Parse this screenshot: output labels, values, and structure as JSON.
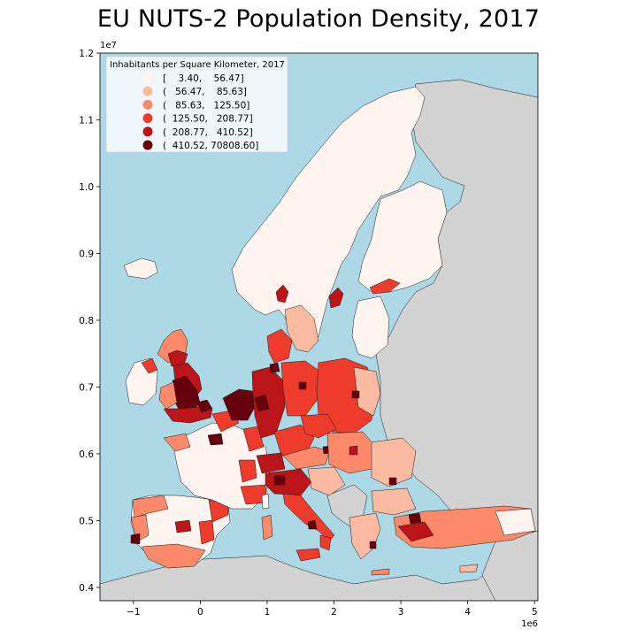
{
  "title": "EU NUTS-2 Population Density, 2017",
  "colors": {
    "sea": "#add8e6",
    "non_eu_land": "#d3d3d3",
    "border": "#1a1a1a",
    "classes": [
      "#fff5f0",
      "#fcbba1",
      "#fc8a6a",
      "#ef3b2c",
      "#bb1419",
      "#67000d"
    ]
  },
  "axes": {
    "x_exponent": "1e6",
    "y_exponent": "1e7",
    "x_ticks": [
      {
        "value": -1,
        "label": "−1"
      },
      {
        "value": 0,
        "label": "0"
      },
      {
        "value": 1,
        "label": "1"
      },
      {
        "value": 2,
        "label": "2"
      },
      {
        "value": 3,
        "label": "3"
      },
      {
        "value": 4,
        "label": "4"
      },
      {
        "value": 5,
        "label": "5"
      }
    ],
    "y_ticks": [
      {
        "value": 0.4,
        "label": "0.4"
      },
      {
        "value": 0.5,
        "label": "0.5"
      },
      {
        "value": 0.6,
        "label": "0.6"
      },
      {
        "value": 0.7,
        "label": "0.7"
      },
      {
        "value": 0.8,
        "label": "0.8"
      },
      {
        "value": 0.9,
        "label": "0.9"
      },
      {
        "value": 1.0,
        "label": "1.0"
      },
      {
        "value": 1.1,
        "label": "1.1"
      },
      {
        "value": 1.2,
        "label": "1.2"
      }
    ]
  },
  "legend": {
    "title": "Inhabitants per Square Kilometer, 2017",
    "position": "top-left",
    "entries": [
      {
        "label": "[    3.40,    56.47]"
      },
      {
        "label": "(   56.47,    85.63]"
      },
      {
        "label": "(   85.63,   125.50]"
      },
      {
        "label": "(  125.50,   208.77]"
      },
      {
        "label": "(  208.77,   410.52]"
      },
      {
        "label": "(  410.52, 70808.60]"
      }
    ]
  }
}
